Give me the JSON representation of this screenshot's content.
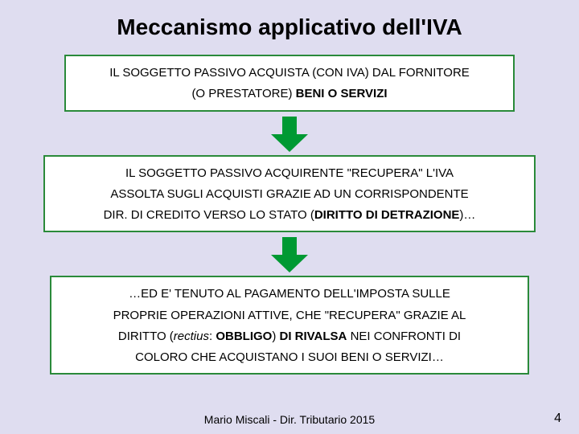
{
  "bg_color": "#dfddf0",
  "title": "Meccanismo applicativo dell'IVA",
  "box_border_color": "#2a8a3a",
  "box_bg_color": "#ffffff",
  "box_border_width": 2,
  "arrow_fill": "#009933",
  "arrow_width": 46,
  "arrow_height": 44,
  "box1": {
    "line1_plain": "IL SOGGETTO PASSIVO  ACQUISTA (CON IVA) DAL FORNITORE",
    "line2_prefix": "(O PRESTATORE) ",
    "line2_bold": "BENI O SERVIZI"
  },
  "box2": {
    "line1": "IL SOGGETTO PASSIVO ACQUIRENTE \"RECUPERA\" L'IVA",
    "line2": "ASSOLTA SUGLI  ACQUISTI GRAZIE AD UN CORRISPONDENTE",
    "line3_prefix": "DIR. DI CREDITO VERSO LO STATO (",
    "line3_bold": "DIRITTO DI DETRAZIONE",
    "line3_suffix": ")…"
  },
  "box3": {
    "line1": "…ED E' TENUTO AL PAGAMENTO DELL'IMPOSTA SULLE",
    "line2": "PROPRIE OPERAZIONI ATTIVE, CHE \"RECUPERA\" GRAZIE AL",
    "line3_prefix": "DIRITTO (",
    "line3_italic": "rectius",
    "line3_mid": ": ",
    "line3_bold": "OBBLIGO",
    "line3_after_bold": ") ",
    "line3_bold2": "DI RIVALSA",
    "line3_suffix": " NEI CONFRONTI DI",
    "line4": "COLORO CHE ACQUISTANO I SUOI BENI O SERVIZI…"
  },
  "footer": "Mario Miscali - Dir. Tributario 2015",
  "page_number": "4"
}
